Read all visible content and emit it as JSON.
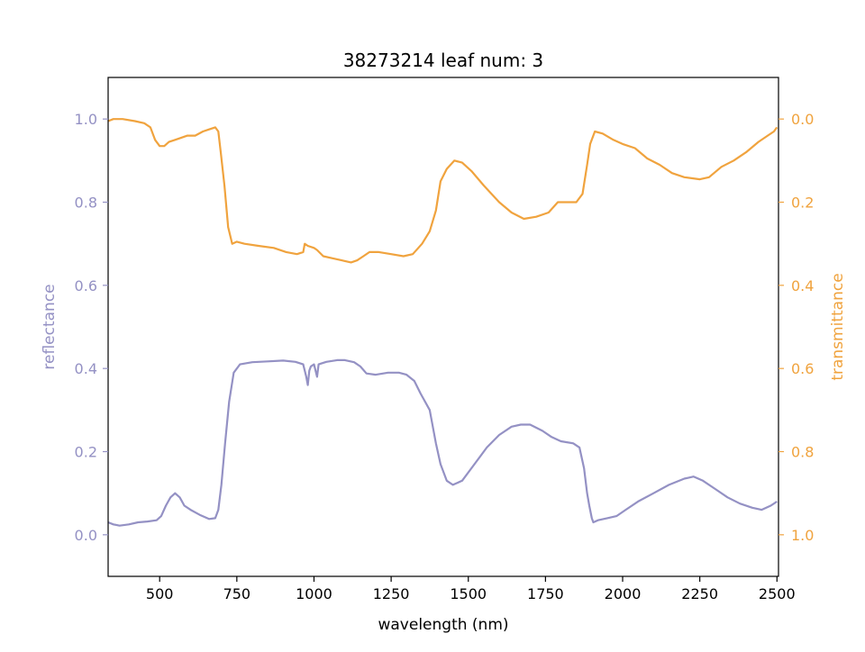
{
  "chart_data": {
    "type": "line",
    "title": "38273214 leaf num: 3",
    "xlabel": "wavelength (nm)",
    "ylabel_left": "reflectance",
    "ylabel_right": "transmittance",
    "xlim": [
      333,
      2505
    ],
    "ylim_left": [
      -0.1,
      1.1
    ],
    "ylim_right": [
      1.1,
      -0.1
    ],
    "right_axis_inverted": true,
    "grid": false,
    "x_ticks": [
      500,
      750,
      1000,
      1250,
      1500,
      1750,
      2000,
      2250,
      2500
    ],
    "y_ticks_left": [
      0.0,
      0.2,
      0.4,
      0.6,
      0.8,
      1.0
    ],
    "y_ticks_right": [
      0.0,
      0.2,
      0.4,
      0.6,
      0.8,
      1.0
    ],
    "colors": {
      "reflectance": "#9491c4",
      "transmittance": "#f0a33e"
    },
    "series": [
      {
        "axis": "left",
        "points": [
          [
            333,
            0.03
          ],
          [
            350,
            0.025
          ],
          [
            370,
            0.022
          ],
          [
            400,
            0.025
          ],
          [
            430,
            0.03
          ],
          [
            460,
            0.032
          ],
          [
            490,
            0.035
          ],
          [
            505,
            0.045
          ],
          [
            520,
            0.07
          ],
          [
            535,
            0.09
          ],
          [
            550,
            0.1
          ],
          [
            565,
            0.09
          ],
          [
            580,
            0.07
          ],
          [
            600,
            0.06
          ],
          [
            630,
            0.048
          ],
          [
            660,
            0.038
          ],
          [
            680,
            0.04
          ],
          [
            690,
            0.06
          ],
          [
            700,
            0.12
          ],
          [
            712,
            0.22
          ],
          [
            725,
            0.32
          ],
          [
            740,
            0.39
          ],
          [
            760,
            0.41
          ],
          [
            800,
            0.415
          ],
          [
            850,
            0.417
          ],
          [
            900,
            0.419
          ],
          [
            940,
            0.416
          ],
          [
            965,
            0.41
          ],
          [
            975,
            0.38
          ],
          [
            980,
            0.36
          ],
          [
            985,
            0.395
          ],
          [
            990,
            0.405
          ],
          [
            1000,
            0.41
          ],
          [
            1010,
            0.38
          ],
          [
            1015,
            0.41
          ],
          [
            1040,
            0.416
          ],
          [
            1075,
            0.42
          ],
          [
            1100,
            0.42
          ],
          [
            1130,
            0.415
          ],
          [
            1150,
            0.405
          ],
          [
            1170,
            0.388
          ],
          [
            1200,
            0.385
          ],
          [
            1240,
            0.39
          ],
          [
            1275,
            0.39
          ],
          [
            1300,
            0.385
          ],
          [
            1325,
            0.37
          ],
          [
            1345,
            0.34
          ],
          [
            1375,
            0.3
          ],
          [
            1395,
            0.22
          ],
          [
            1410,
            0.17
          ],
          [
            1430,
            0.13
          ],
          [
            1450,
            0.12
          ],
          [
            1480,
            0.13
          ],
          [
            1520,
            0.17
          ],
          [
            1560,
            0.21
          ],
          [
            1600,
            0.24
          ],
          [
            1640,
            0.26
          ],
          [
            1670,
            0.265
          ],
          [
            1700,
            0.265
          ],
          [
            1740,
            0.25
          ],
          [
            1770,
            0.235
          ],
          [
            1800,
            0.225
          ],
          [
            1840,
            0.22
          ],
          [
            1860,
            0.21
          ],
          [
            1875,
            0.16
          ],
          [
            1885,
            0.1
          ],
          [
            1892,
            0.07
          ],
          [
            1900,
            0.04
          ],
          [
            1905,
            0.03
          ],
          [
            1920,
            0.035
          ],
          [
            1950,
            0.04
          ],
          [
            1980,
            0.045
          ],
          [
            2010,
            0.06
          ],
          [
            2050,
            0.08
          ],
          [
            2100,
            0.1
          ],
          [
            2150,
            0.12
          ],
          [
            2200,
            0.135
          ],
          [
            2230,
            0.14
          ],
          [
            2260,
            0.13
          ],
          [
            2300,
            0.11
          ],
          [
            2340,
            0.09
          ],
          [
            2380,
            0.075
          ],
          [
            2420,
            0.065
          ],
          [
            2450,
            0.06
          ],
          [
            2480,
            0.07
          ],
          [
            2500,
            0.08
          ]
        ]
      },
      {
        "axis": "right",
        "points": [
          [
            333,
            0.005
          ],
          [
            350,
            0.0
          ],
          [
            380,
            0.0
          ],
          [
            420,
            0.005
          ],
          [
            450,
            0.01
          ],
          [
            470,
            0.02
          ],
          [
            485,
            0.05
          ],
          [
            500,
            0.065
          ],
          [
            515,
            0.065
          ],
          [
            530,
            0.055
          ],
          [
            550,
            0.05
          ],
          [
            570,
            0.045
          ],
          [
            590,
            0.04
          ],
          [
            615,
            0.04
          ],
          [
            640,
            0.03
          ],
          [
            660,
            0.025
          ],
          [
            680,
            0.02
          ],
          [
            690,
            0.03
          ],
          [
            698,
            0.08
          ],
          [
            710,
            0.16
          ],
          [
            722,
            0.26
          ],
          [
            735,
            0.3
          ],
          [
            750,
            0.295
          ],
          [
            775,
            0.3
          ],
          [
            820,
            0.305
          ],
          [
            870,
            0.31
          ],
          [
            910,
            0.32
          ],
          [
            945,
            0.325
          ],
          [
            965,
            0.32
          ],
          [
            970,
            0.3
          ],
          [
            980,
            0.305
          ],
          [
            1000,
            0.31
          ],
          [
            1010,
            0.315
          ],
          [
            1030,
            0.33
          ],
          [
            1060,
            0.335
          ],
          [
            1090,
            0.34
          ],
          [
            1120,
            0.345
          ],
          [
            1140,
            0.34
          ],
          [
            1160,
            0.33
          ],
          [
            1180,
            0.32
          ],
          [
            1210,
            0.32
          ],
          [
            1250,
            0.325
          ],
          [
            1290,
            0.33
          ],
          [
            1320,
            0.325
          ],
          [
            1350,
            0.3
          ],
          [
            1375,
            0.27
          ],
          [
            1395,
            0.22
          ],
          [
            1410,
            0.15
          ],
          [
            1430,
            0.12
          ],
          [
            1455,
            0.1
          ],
          [
            1480,
            0.105
          ],
          [
            1510,
            0.125
          ],
          [
            1550,
            0.16
          ],
          [
            1600,
            0.2
          ],
          [
            1640,
            0.225
          ],
          [
            1680,
            0.24
          ],
          [
            1720,
            0.235
          ],
          [
            1760,
            0.225
          ],
          [
            1790,
            0.2
          ],
          [
            1820,
            0.2
          ],
          [
            1850,
            0.2
          ],
          [
            1870,
            0.18
          ],
          [
            1885,
            0.11
          ],
          [
            1895,
            0.06
          ],
          [
            1910,
            0.03
          ],
          [
            1935,
            0.035
          ],
          [
            1970,
            0.05
          ],
          [
            2000,
            0.06
          ],
          [
            2040,
            0.07
          ],
          [
            2080,
            0.095
          ],
          [
            2120,
            0.11
          ],
          [
            2160,
            0.13
          ],
          [
            2200,
            0.14
          ],
          [
            2250,
            0.145
          ],
          [
            2280,
            0.14
          ],
          [
            2320,
            0.115
          ],
          [
            2360,
            0.1
          ],
          [
            2400,
            0.08
          ],
          [
            2440,
            0.055
          ],
          [
            2470,
            0.04
          ],
          [
            2490,
            0.03
          ],
          [
            2500,
            0.02
          ]
        ]
      }
    ]
  }
}
